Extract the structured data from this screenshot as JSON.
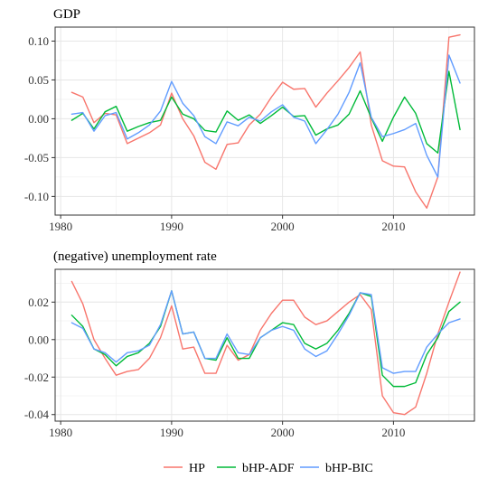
{
  "chart_data": {
    "type": "line",
    "legend": {
      "position": "bottom",
      "entries": [
        {
          "name": "HP",
          "color": "#f8766d"
        },
        {
          "name": "bHP-ADF",
          "color": "#00ba38"
        },
        {
          "name": "bHP-BIC",
          "color": "#619cff"
        }
      ]
    },
    "panels": [
      {
        "title": "GDP",
        "xlim": [
          1979.5,
          2017.3
        ],
        "ylim": [
          -0.124,
          0.118
        ],
        "x_ticks": [
          1980,
          1990,
          2000,
          2010
        ],
        "x_tick_labels": [
          "1980",
          "1990",
          "2000",
          "2010"
        ],
        "y_ticks": [
          -0.1,
          -0.05,
          0.0,
          0.05,
          0.1
        ],
        "y_tick_labels": [
          "-0.10",
          "-0.05",
          "0.00",
          "0.05",
          "0.10"
        ],
        "grid": true,
        "x": [
          1981,
          1982,
          1983,
          1984,
          1985,
          1986,
          1987,
          1988,
          1989,
          1990,
          1991,
          1992,
          1993,
          1994,
          1995,
          1996,
          1997,
          1998,
          1999,
          2000,
          2001,
          2002,
          2003,
          2004,
          2005,
          2006,
          2007,
          2008,
          2009,
          2010,
          2011,
          2012,
          2013,
          2014,
          2015,
          2016
        ],
        "series": [
          {
            "name": "HP",
            "color": "#f8766d",
            "values": [
              0.034,
              0.028,
              -0.005,
              0.007,
              0.005,
              -0.032,
              -0.025,
              -0.018,
              -0.008,
              0.033,
              0.0,
              -0.022,
              -0.056,
              -0.065,
              -0.033,
              -0.031,
              -0.008,
              0.006,
              0.028,
              0.047,
              0.038,
              0.039,
              0.015,
              0.033,
              0.049,
              0.066,
              0.086,
              -0.008,
              -0.054,
              -0.061,
              -0.062,
              -0.094,
              -0.115,
              -0.075,
              0.105,
              0.108
            ]
          },
          {
            "name": "bHP-ADF",
            "color": "#00ba38",
            "values": [
              -0.002,
              0.007,
              -0.013,
              0.009,
              0.016,
              -0.016,
              -0.01,
              -0.005,
              -0.002,
              0.028,
              0.006,
              0.0,
              -0.015,
              -0.017,
              0.01,
              -0.002,
              0.005,
              -0.006,
              0.004,
              0.015,
              0.003,
              0.004,
              -0.021,
              -0.013,
              -0.008,
              0.006,
              0.036,
              0.001,
              -0.029,
              0.002,
              0.028,
              0.007,
              -0.032,
              -0.044,
              0.061,
              -0.014
            ]
          },
          {
            "name": "bHP-BIC",
            "color": "#619cff",
            "values": [
              0.006,
              0.008,
              -0.016,
              0.004,
              0.008,
              -0.026,
              -0.018,
              -0.008,
              0.01,
              0.048,
              0.02,
              0.004,
              -0.023,
              -0.032,
              -0.004,
              -0.009,
              0.002,
              -0.003,
              0.009,
              0.018,
              0.002,
              -0.003,
              -0.032,
              -0.014,
              0.006,
              0.034,
              0.072,
              0.002,
              -0.023,
              -0.019,
              -0.014,
              -0.006,
              -0.047,
              -0.075,
              0.082,
              0.046
            ]
          }
        ]
      },
      {
        "title": "(negative) unemployment rate",
        "xlim": [
          1979.5,
          2017.3
        ],
        "ylim": [
          -0.0435,
          0.0375
        ],
        "x_ticks": [
          1980,
          1990,
          2000,
          2010
        ],
        "x_tick_labels": [
          "1980",
          "1990",
          "2000",
          "2010"
        ],
        "y_ticks": [
          -0.04,
          -0.02,
          0.0,
          0.02
        ],
        "y_tick_labels": [
          "-0.04",
          "-0.02",
          "0.00",
          "0.02"
        ],
        "grid": true,
        "x": [
          1981,
          1982,
          1983,
          1984,
          1985,
          1986,
          1987,
          1988,
          1989,
          1990,
          1991,
          1992,
          1993,
          1994,
          1995,
          1996,
          1997,
          1998,
          1999,
          2000,
          2001,
          2002,
          2003,
          2004,
          2005,
          2006,
          2007,
          2008,
          2009,
          2010,
          2011,
          2012,
          2013,
          2014,
          2015,
          2016
        ],
        "series": [
          {
            "name": "HP",
            "color": "#f8766d",
            "values": [
              0.031,
              0.019,
              0.0,
              -0.01,
              -0.019,
              -0.017,
              -0.016,
              -0.01,
              0.001,
              0.018,
              -0.005,
              -0.004,
              -0.018,
              -0.018,
              -0.003,
              -0.011,
              -0.008,
              0.005,
              0.014,
              0.021,
              0.021,
              0.012,
              0.008,
              0.01,
              0.015,
              0.02,
              0.024,
              0.016,
              -0.03,
              -0.039,
              -0.04,
              -0.036,
              -0.018,
              0.003,
              0.02,
              0.036
            ]
          },
          {
            "name": "bHP-ADF",
            "color": "#00ba38",
            "values": [
              0.013,
              0.007,
              -0.005,
              -0.008,
              -0.014,
              -0.009,
              -0.007,
              -0.002,
              0.007,
              0.026,
              0.003,
              0.004,
              -0.01,
              -0.011,
              0.001,
              -0.01,
              -0.01,
              0.001,
              0.005,
              0.009,
              0.008,
              -0.002,
              -0.005,
              -0.002,
              0.005,
              0.014,
              0.025,
              0.023,
              -0.019,
              -0.025,
              -0.025,
              -0.023,
              -0.008,
              0.001,
              0.015,
              0.02
            ]
          },
          {
            "name": "bHP-BIC",
            "color": "#619cff",
            "values": [
              0.009,
              0.006,
              -0.005,
              -0.007,
              -0.012,
              -0.007,
              -0.006,
              -0.003,
              0.008,
              0.026,
              0.003,
              0.004,
              -0.01,
              -0.01,
              0.003,
              -0.007,
              -0.008,
              0.001,
              0.005,
              0.007,
              0.005,
              -0.005,
              -0.009,
              -0.006,
              0.003,
              0.013,
              0.025,
              0.024,
              -0.015,
              -0.018,
              -0.017,
              -0.017,
              -0.004,
              0.003,
              0.009,
              0.011
            ]
          }
        ]
      }
    ]
  }
}
